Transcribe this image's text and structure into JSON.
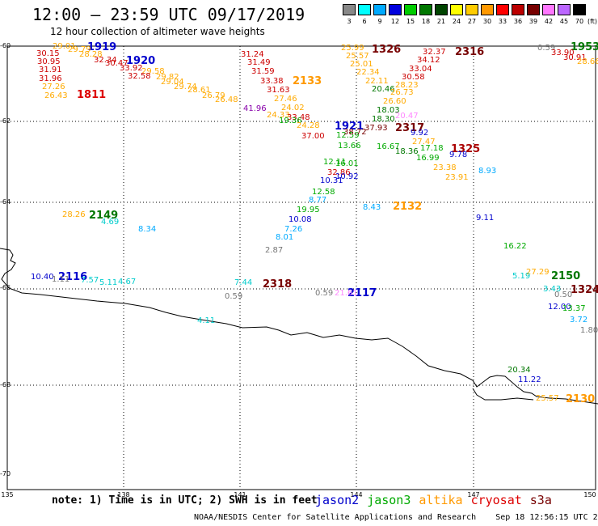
{
  "header": {
    "title": "12:00 – 23:59 UTC 09/17/2019",
    "subtitle": "12 hour collection of altimeter wave heights"
  },
  "colorbar": {
    "unit": "(ft)",
    "bins": [
      {
        "label": "3",
        "color": "#888888"
      },
      {
        "label": "6",
        "color": "#00ffff"
      },
      {
        "label": "9",
        "color": "#00aaff"
      },
      {
        "label": "12",
        "color": "#0000dd"
      },
      {
        "label": "15",
        "color": "#00cc00"
      },
      {
        "label": "18",
        "color": "#007700"
      },
      {
        "label": "21",
        "color": "#004400"
      },
      {
        "label": "24",
        "color": "#ffff00"
      },
      {
        "label": "27",
        "color": "#ffcc00"
      },
      {
        "label": "30",
        "color": "#ff9900"
      },
      {
        "label": "33",
        "color": "#ff0000"
      },
      {
        "label": "36",
        "color": "#bb0000"
      },
      {
        "label": "39",
        "color": "#770000"
      },
      {
        "label": "42",
        "color": "#ff77ff"
      },
      {
        "label": "45",
        "color": "#bb66ff"
      },
      {
        "label": "70",
        "color": "#000000"
      }
    ]
  },
  "axes": {
    "x_ticks": [
      "135",
      "138",
      "141",
      "144",
      "147",
      "150"
    ],
    "y_ticks": [
      "-60",
      "-62",
      "-64",
      "-66",
      "-68",
      "-70"
    ]
  },
  "times": [
    {
      "text": "1919",
      "color": "#0000cc"
    },
    {
      "text": "1920",
      "color": "#0000cc"
    },
    {
      "text": "1811",
      "color": "#dd0000"
    },
    {
      "text": "2133",
      "color": "#ff9900"
    },
    {
      "text": "1326",
      "color": "#770000"
    },
    {
      "text": "2316",
      "color": "#770000"
    },
    {
      "text": "1953",
      "color": "#007700"
    },
    {
      "text": "1921",
      "color": "#0000cc"
    },
    {
      "text": "2317",
      "color": "#770000"
    },
    {
      "text": "1325",
      "color": "#aa0000"
    },
    {
      "text": "2149",
      "color": "#007700"
    },
    {
      "text": "2132",
      "color": "#ff9900"
    },
    {
      "text": "2116",
      "color": "#0000cc"
    },
    {
      "text": "2318",
      "color": "#770000"
    },
    {
      "text": "2117",
      "color": "#0000cc"
    },
    {
      "text": "2150",
      "color": "#007700"
    },
    {
      "text": "1324",
      "color": "#770000"
    },
    {
      "text": "2130",
      "color": "#ff9900"
    }
  ],
  "swh": [
    {
      "text": "29.01",
      "color": "#ffaa00"
    },
    {
      "text": "29.79",
      "color": "#ffaa00"
    },
    {
      "text": "28.28",
      "color": "#ffaa00"
    },
    {
      "text": "30.15",
      "color": "#cc0000"
    },
    {
      "text": "30.95",
      "color": "#cc0000"
    },
    {
      "text": "31.91",
      "color": "#cc0000"
    },
    {
      "text": "31.96",
      "color": "#cc0000"
    },
    {
      "text": "27.26",
      "color": "#ffaa00"
    },
    {
      "text": "26.43",
      "color": "#ffaa00"
    },
    {
      "text": "32.34",
      "color": "#cc0000"
    },
    {
      "text": "30.47",
      "color": "#cc0000"
    },
    {
      "text": "33.92",
      "color": "#cc0000"
    },
    {
      "text": "29.58",
      "color": "#ffaa00"
    },
    {
      "text": "32.58",
      "color": "#cc0000"
    },
    {
      "text": "29.82",
      "color": "#ffaa00"
    },
    {
      "text": "29.04",
      "color": "#ffaa00"
    },
    {
      "text": "29.74",
      "color": "#ffaa00"
    },
    {
      "text": "28.61",
      "color": "#ffaa00"
    },
    {
      "text": "26.79",
      "color": "#ffaa00"
    },
    {
      "text": "26.48",
      "color": "#ffaa00"
    },
    {
      "text": "31.24",
      "color": "#cc0000"
    },
    {
      "text": "31.49",
      "color": "#cc0000"
    },
    {
      "text": "31.59",
      "color": "#cc0000"
    },
    {
      "text": "33.38",
      "color": "#cc0000"
    },
    {
      "text": "31.63",
      "color": "#cc0000"
    },
    {
      "text": "27.46",
      "color": "#ffaa00"
    },
    {
      "text": "24.02",
      "color": "#ffaa00"
    },
    {
      "text": "41.96",
      "color": "#8800aa"
    },
    {
      "text": "24.33",
      "color": "#ffaa00"
    },
    {
      "text": "33.48",
      "color": "#cc0000"
    },
    {
      "text": "19.36",
      "color": "#00aa00"
    },
    {
      "text": "24.28",
      "color": "#ffaa00"
    },
    {
      "text": "37.00",
      "color": "#cc0000"
    },
    {
      "text": "25.99",
      "color": "#ffaa00"
    },
    {
      "text": "25.57",
      "color": "#ffaa00"
    },
    {
      "text": "25.01",
      "color": "#ffaa00"
    },
    {
      "text": "22.34",
      "color": "#ffaa00"
    },
    {
      "text": "22.11",
      "color": "#ffaa00"
    },
    {
      "text": "20.46",
      "color": "#007700"
    },
    {
      "text": "18.03",
      "color": "#007700"
    },
    {
      "text": "18.30",
      "color": "#007700"
    },
    {
      "text": "37.93",
      "color": "#770000"
    },
    {
      "text": "12.59",
      "color": "#00aa00"
    },
    {
      "text": "13.66",
      "color": "#00aa00"
    },
    {
      "text": "38.72",
      "color": "#770000"
    },
    {
      "text": "12.11",
      "color": "#00aa00"
    },
    {
      "text": "16.01",
      "color": "#00aa00"
    },
    {
      "text": "32.86",
      "color": "#cc0000"
    },
    {
      "text": "10.92",
      "color": "#0000cc"
    },
    {
      "text": "10.31",
      "color": "#0000cc"
    },
    {
      "text": "12.58",
      "color": "#00aa00"
    },
    {
      "text": "8.77",
      "color": "#00aaff"
    },
    {
      "text": "19.95",
      "color": "#00aa00"
    },
    {
      "text": "10.08",
      "color": "#0000cc"
    },
    {
      "text": "7.26",
      "color": "#00aaff"
    },
    {
      "text": "8.01",
      "color": "#00aaff"
    },
    {
      "text": "2.87",
      "color": "#777777"
    },
    {
      "text": "32.37",
      "color": "#cc0000"
    },
    {
      "text": "34.12",
      "color": "#cc0000"
    },
    {
      "text": "33.04",
      "color": "#cc0000"
    },
    {
      "text": "30.58",
      "color": "#cc0000"
    },
    {
      "text": "28.23",
      "color": "#ffaa00"
    },
    {
      "text": "26.73",
      "color": "#ffaa00"
    },
    {
      "text": "26.60",
      "color": "#ffaa00"
    },
    {
      "text": "20.47",
      "color": "#ff88ff"
    },
    {
      "text": "9.92",
      "color": "#0000cc"
    },
    {
      "text": "27.47",
      "color": "#ffaa00"
    },
    {
      "text": "16.67",
      "color": "#00aa00"
    },
    {
      "text": "17.18",
      "color": "#00aa00"
    },
    {
      "text": "18.36",
      "color": "#007700"
    },
    {
      "text": "16.99",
      "color": "#00aa00"
    },
    {
      "text": "9.78",
      "color": "#0000cc"
    },
    {
      "text": "23.38",
      "color": "#ffaa00"
    },
    {
      "text": "23.91",
      "color": "#ffaa00"
    },
    {
      "text": "8.43",
      "color": "#00aaff"
    },
    {
      "text": "8.93",
      "color": "#00aaff"
    },
    {
      "text": "9.11",
      "color": "#0000cc"
    },
    {
      "text": "16.22",
      "color": "#00aa00"
    },
    {
      "text": "0.59",
      "color": "#777777"
    },
    {
      "text": "33.90",
      "color": "#cc0000"
    },
    {
      "text": "30.91",
      "color": "#cc0000"
    },
    {
      "text": "28.66",
      "color": "#ffaa00"
    },
    {
      "text": "28.26",
      "color": "#ffaa00"
    },
    {
      "text": "4.69",
      "color": "#00cccc"
    },
    {
      "text": "8.34",
      "color": "#00aaff"
    },
    {
      "text": "10.40",
      "color": "#0000cc"
    },
    {
      "text": "1.11",
      "color": "#777777"
    },
    {
      "text": "7.57",
      "color": "#00cccc"
    },
    {
      "text": "5.11",
      "color": "#00cccc"
    },
    {
      "text": "4.67",
      "color": "#00cccc"
    },
    {
      "text": "7.44",
      "color": "#00cccc"
    },
    {
      "text": "0.59",
      "color": "#777777"
    },
    {
      "text": "0.59",
      "color": "#777777"
    },
    {
      "text": "21.61",
      "color": "#ff88ff"
    },
    {
      "text": "27.29",
      "color": "#ffaa00"
    },
    {
      "text": "5.19",
      "color": "#00cccc"
    },
    {
      "text": "3.43",
      "color": "#00cccc"
    },
    {
      "text": "0.50",
      "color": "#777777"
    },
    {
      "text": "12.00",
      "color": "#0000cc"
    },
    {
      "text": "13.37",
      "color": "#00aa00"
    },
    {
      "text": "3.72",
      "color": "#00aaff"
    },
    {
      "text": "1.80",
      "color": "#777777"
    },
    {
      "text": "4.11",
      "color": "#00cccc"
    },
    {
      "text": "20.34",
      "color": "#007700"
    },
    {
      "text": "11.22",
      "color": "#0000cc"
    },
    {
      "text": "25.57",
      "color": "#ffaa00"
    },
    {
      "text": "29.84",
      "color": "#cc88ff"
    }
  ],
  "note": "note: 1) Time is in UTC; 2) SWH is in feet",
  "legend": [
    {
      "label": "jason2",
      "color": "#0000cc"
    },
    {
      "label": "jason3",
      "color": "#00aa00"
    },
    {
      "label": "altika",
      "color": "#ff9900"
    },
    {
      "label": "cryosat",
      "color": "#dd0000"
    },
    {
      "label": "s3a",
      "color": "#770000"
    }
  ],
  "footer": {
    "center": "NOAA/NESDIS Center for Satellite Applications and Research",
    "timestamp": "Sep 18 12:56:15 UTC 2019"
  }
}
